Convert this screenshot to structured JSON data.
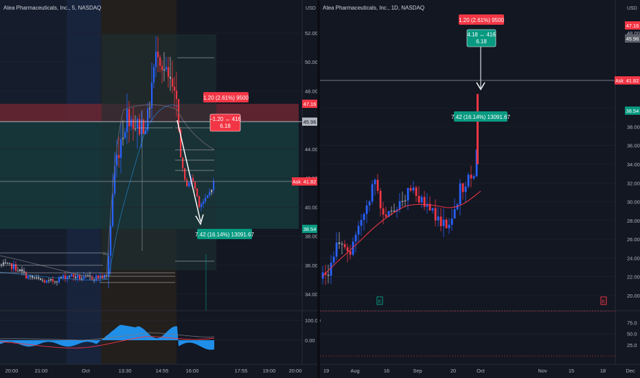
{
  "left": {
    "title": "Atea Pharmaceuticals, Inc., 5, NASDAQ",
    "currency": "USD",
    "axis_labels": [
      "52.00",
      "50.00",
      "48.00",
      "44.00",
      "42.00",
      "40.00",
      "38.00",
      "36.00",
      "34.00"
    ],
    "osc_labels": [
      "100.00",
      "0.00"
    ],
    "time_labels": [
      "20:00",
      "21:00",
      "Oct",
      "13:30",
      "14:55",
      "16:00",
      "17:55",
      "19:00",
      "20:00"
    ],
    "tags": {
      "p4716": "47.16",
      "p4596": "45.96",
      "ask_label": "Ask",
      "p4182": "41.82",
      "p3854": "38.54"
    },
    "boxes": {
      "target_line1": "1.20 (2.61%) 9500",
      "range_line1": "−1.20 ↔ 416",
      "range_line2": "6.18",
      "stop_line1": "7.42 (16.14%) 13091.67"
    }
  },
  "right": {
    "title": "Atea Pharmaceuticals, Inc., 1D, NASDAQ",
    "currency": "USD",
    "axis_labels": [
      "48.00",
      "40.00",
      "38.00",
      "36.00",
      "34.00",
      "32.00",
      "30.00",
      "28.00",
      "26.00",
      "24.00",
      "22.00",
      "20.00"
    ],
    "osc_labels": [
      "75.0",
      "50.0",
      "25.0"
    ],
    "time_labels": [
      "19",
      "Aug",
      "16",
      "Sep",
      "20",
      "Oct",
      "Nov",
      "15",
      "18",
      "Dec"
    ],
    "tags": {
      "p4716": "47.16",
      "p4596": "45.96",
      "ask_label": "Ask",
      "p4182": "41.82",
      "p3854": "38.54"
    },
    "boxes": {
      "target_line1": "1.20 (2.61%) 9500",
      "range_line1": "4.18 ↔ 416",
      "range_line2": "6.18",
      "stop_line1": "7.42 (16.14%) 13091.67"
    },
    "event_marks": [
      "E",
      "E"
    ]
  },
  "colors": {
    "bg": "#131722",
    "up": "#2962ff",
    "down": "#f23645",
    "neutral": "#b2b5be",
    "tag_red": "#f23645",
    "tag_teal": "#089981",
    "tag_gray": "#5d606b",
    "ma": "#f23645",
    "osc": "#2196f3"
  },
  "chart_data": [
    {
      "type": "line",
      "title": "Atea Pharmaceuticals, Inc., 5, NASDAQ",
      "xlabel": "",
      "ylabel": "USD",
      "ylim": [
        33,
        53.5
      ],
      "x": [
        "20:00",
        "21:00",
        "Oct",
        "13:30",
        "14:55",
        "16:00"
      ],
      "series": [
        {
          "values": [
            35.2,
            34.9,
            35.1,
            42.5,
            51.0,
            40.5
          ]
        }
      ],
      "levels": {
        "entry": 45.96,
        "target": 47.16,
        "stop": 38.54,
        "ask": 41.82
      }
    },
    {
      "type": "line",
      "title": "Atea Pharmaceuticals, Inc., 1D, NASDAQ",
      "xlabel": "",
      "ylabel": "USD",
      "ylim": [
        19,
        49.5
      ],
      "x": [
        "19",
        "Aug",
        "16",
        "Sep",
        "20",
        "Oct"
      ],
      "series": [
        {
          "values": [
            22.0,
            27.5,
            30.5,
            31.0,
            26.5,
            37.5
          ]
        }
      ],
      "levels": {
        "entry": 45.96,
        "target": 47.16,
        "stop": 38.54,
        "ask": 41.82
      }
    }
  ]
}
